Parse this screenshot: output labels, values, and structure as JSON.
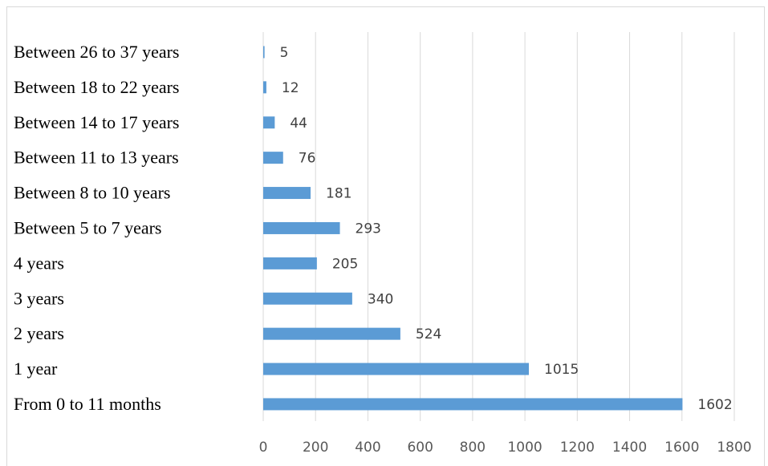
{
  "chart_data": {
    "type": "bar",
    "orientation": "horizontal",
    "categories": [
      "From 0 to 11 months",
      "1 year",
      "2 years",
      "3 years",
      "4 years",
      "Between 5 to 7 years",
      "Between 8 to 10 years",
      "Between 11 to 13 years",
      "Between 14 to 17 years",
      "Between 18 to 22 years",
      "Between 26 to 37 years"
    ],
    "values": [
      1602,
      1015,
      524,
      340,
      205,
      293,
      181,
      76,
      44,
      12,
      5
    ],
    "title": "",
    "xlabel": "",
    "ylabel": "",
    "xlim": [
      0,
      1800
    ],
    "xticks": [
      "0",
      "200",
      "400",
      "600",
      "800",
      "1000",
      "1200",
      "1400",
      "1600",
      "1800"
    ],
    "grid": true,
    "legend": "none",
    "bar_color": "#5b9bd5"
  }
}
